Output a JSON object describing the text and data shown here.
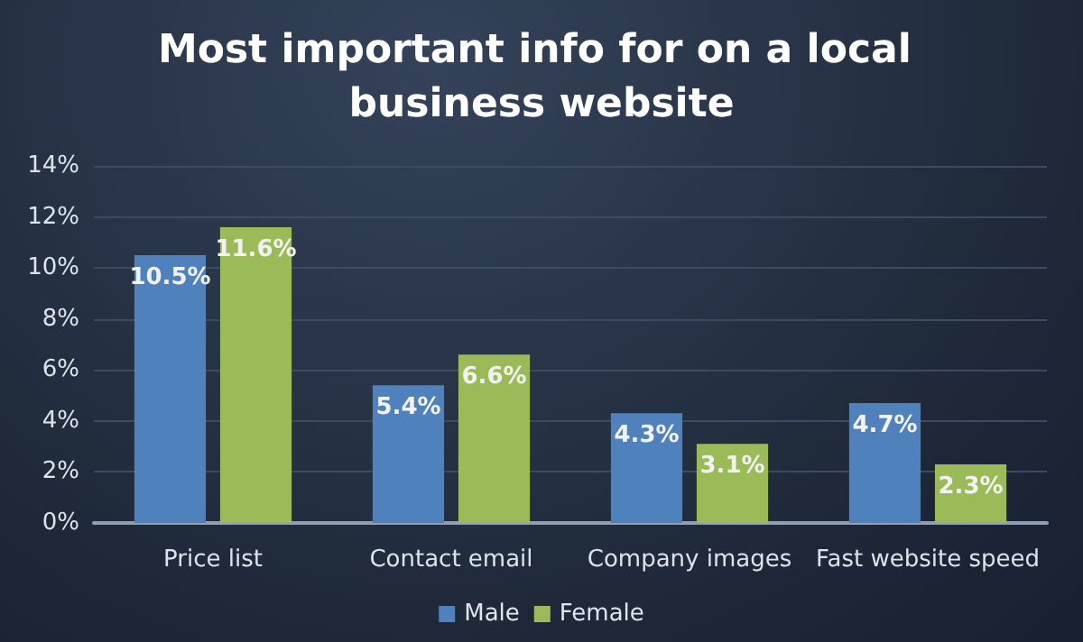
{
  "chart_data": {
    "type": "bar",
    "title": "Most important info for on a local business website",
    "categories": [
      "Price list",
      "Contact email",
      "Company images",
      "Fast website speed"
    ],
    "series": [
      {
        "name": "Male",
        "color": "#4f81bd",
        "values": [
          10.5,
          5.4,
          4.3,
          4.7
        ],
        "value_labels": [
          "10.5%",
          "5.4%",
          "4.3%",
          "4.7%"
        ]
      },
      {
        "name": "Female",
        "color": "#9bbb59",
        "values": [
          11.6,
          6.6,
          3.1,
          2.3
        ],
        "value_labels": [
          "11.6%",
          "6.6%",
          "3.1%",
          "2.3%"
        ]
      }
    ],
    "ylim": [
      0,
      14
    ],
    "yticks": [
      {
        "value": 0,
        "label": "0%"
      },
      {
        "value": 2,
        "label": "2%"
      },
      {
        "value": 4,
        "label": "4%"
      },
      {
        "value": 6,
        "label": "6%"
      },
      {
        "value": 8,
        "label": "8%"
      },
      {
        "value": 10,
        "label": "10%"
      },
      {
        "value": 12,
        "label": "12%"
      },
      {
        "value": 14,
        "label": "14%"
      }
    ],
    "grid": "y",
    "legend": "bottom"
  }
}
